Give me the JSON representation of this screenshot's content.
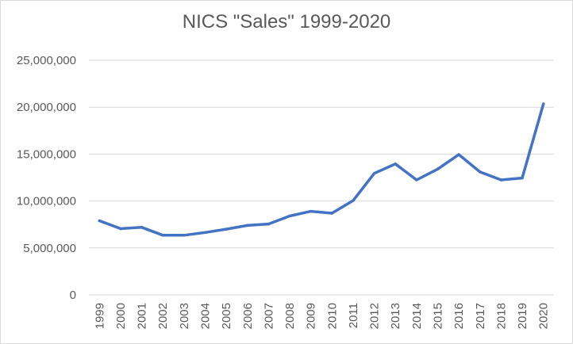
{
  "chart_data": {
    "type": "line",
    "title": "NICS \"Sales\" 1999-2020",
    "xlabel": "",
    "ylabel": "",
    "ylim": [
      0,
      25000000
    ],
    "yticks": [
      "0",
      "5,000,000",
      "10,000,000",
      "15,000,000",
      "20,000,000",
      "25,000,000"
    ],
    "ytick_values": [
      0,
      5000000,
      10000000,
      15000000,
      20000000,
      25000000
    ],
    "categories": [
      "1999",
      "2000",
      "2001",
      "2002",
      "2003",
      "2004",
      "2005",
      "2006",
      "2007",
      "2008",
      "2009",
      "2010",
      "2011",
      "2012",
      "2013",
      "2014",
      "2015",
      "2016",
      "2017",
      "2018",
      "2019",
      "2020"
    ],
    "series": [
      {
        "values": [
          7900000,
          7050000,
          7200000,
          6350000,
          6350000,
          6650000,
          7000000,
          7400000,
          7550000,
          8400000,
          8900000,
          8700000,
          10050000,
          12950000,
          13950000,
          12250000,
          13400000,
          14950000,
          13100000,
          12250000,
          12450000,
          20350000
        ],
        "color": "#4472c4"
      }
    ],
    "grid": true,
    "legend": "none"
  }
}
